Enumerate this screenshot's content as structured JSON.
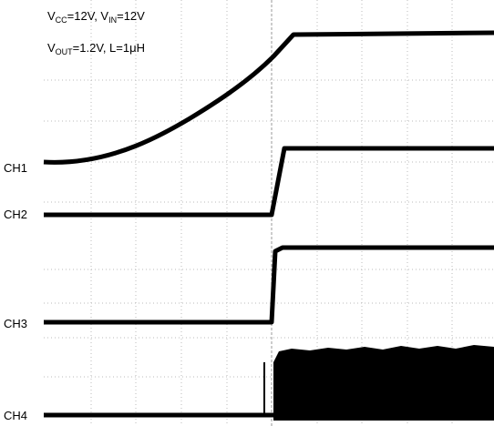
{
  "conditions": [
    [
      "V",
      "CC",
      "=12V, V",
      "IN",
      "=12V"
    ],
    [
      "V",
      "OUT",
      "=1.2V, L=1",
      "μ",
      "H"
    ]
  ],
  "channels": [
    "CH1",
    "CH2",
    "CH3",
    "CH4"
  ]
}
